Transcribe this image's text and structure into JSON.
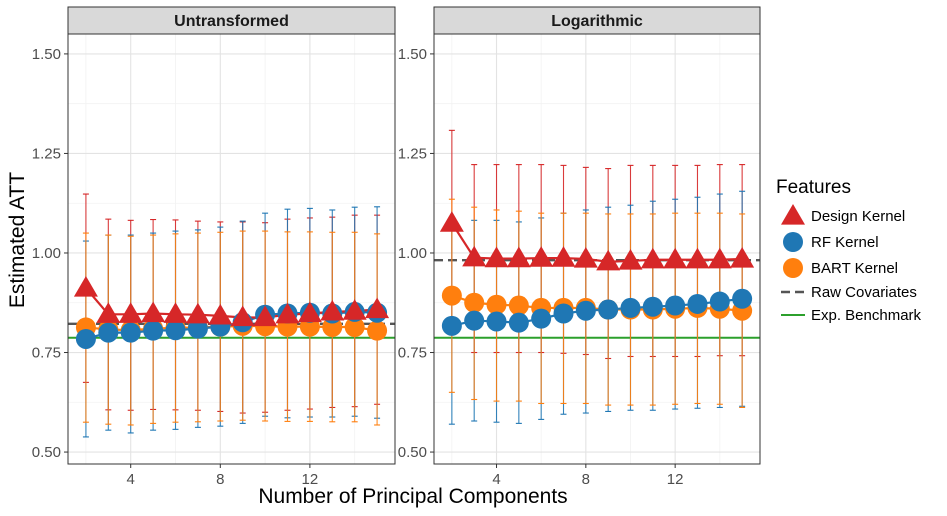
{
  "chart_data": {
    "type": "scatter",
    "ylabel": "Estimated ATT",
    "xlabel": "Number of Principal Components",
    "ylim": [
      0.47,
      1.55
    ],
    "xlim": [
      1.2,
      15.8
    ],
    "y_ticks": [
      0.5,
      0.75,
      1.0,
      1.25,
      1.5
    ],
    "y_tick_labels": [
      "0.50",
      "0.75",
      "1.00",
      "1.25",
      "1.50"
    ],
    "x_ticks": [
      4,
      8,
      12
    ],
    "x_tick_labels": [
      "4",
      "8",
      "12"
    ],
    "x": [
      2,
      3,
      4,
      5,
      6,
      7,
      8,
      9,
      10,
      11,
      12,
      13,
      14,
      15
    ],
    "legend": {
      "title": "Features",
      "entries": [
        {
          "key": "design",
          "label": "Design Kernel"
        },
        {
          "key": "rf",
          "label": "RF Kernel"
        },
        {
          "key": "bart",
          "label": "BART Kernel"
        },
        {
          "key": "raw",
          "label": "Raw Covariates"
        },
        {
          "key": "bench",
          "label": "Exp. Benchmark"
        }
      ]
    },
    "colors": {
      "design": "#D62728",
      "rf": "#1F77B4",
      "bart": "#FF7F0E",
      "raw": "#555555",
      "bench": "#2CA02C"
    },
    "panels": [
      {
        "title": "Untransformed",
        "raw_covariates": 0.822,
        "benchmark": 0.787,
        "series": [
          {
            "key": "design",
            "values": [
              0.912,
              0.846,
              0.846,
              0.848,
              0.846,
              0.845,
              0.842,
              0.838,
              0.838,
              0.845,
              0.848,
              0.852,
              0.854,
              0.858
            ],
            "upper": [
              1.148,
              1.085,
              1.082,
              1.084,
              1.083,
              1.08,
              1.078,
              1.078,
              1.076,
              1.085,
              1.088,
              1.09,
              1.095,
              1.095
            ],
            "lower": [
              0.675,
              0.606,
              0.605,
              0.607,
              0.606,
              0.605,
              0.602,
              0.598,
              0.6,
              0.605,
              0.608,
              0.612,
              0.614,
              0.62
            ]
          },
          {
            "key": "rf",
            "values": [
              0.784,
              0.8,
              0.8,
              0.805,
              0.806,
              0.81,
              0.815,
              0.826,
              0.845,
              0.848,
              0.85,
              0.848,
              0.852,
              0.85
            ],
            "upper": [
              1.03,
              1.045,
              1.045,
              1.05,
              1.055,
              1.058,
              1.065,
              1.08,
              1.1,
              1.11,
              1.112,
              1.108,
              1.115,
              1.116
            ],
            "lower": [
              0.538,
              0.555,
              0.548,
              0.555,
              0.557,
              0.562,
              0.565,
              0.572,
              0.59,
              0.586,
              0.588,
              0.588,
              0.59,
              0.585
            ]
          },
          {
            "key": "bart",
            "values": [
              0.813,
              0.808,
              0.806,
              0.81,
              0.812,
              0.813,
              0.815,
              0.817,
              0.816,
              0.815,
              0.815,
              0.814,
              0.814,
              0.805
            ],
            "upper": [
              1.05,
              1.045,
              1.042,
              1.045,
              1.048,
              1.05,
              1.052,
              1.055,
              1.055,
              1.053,
              1.053,
              1.052,
              1.052,
              1.048
            ],
            "lower": [
              0.575,
              0.57,
              0.568,
              0.572,
              0.575,
              0.576,
              0.578,
              0.58,
              0.578,
              0.577,
              0.577,
              0.576,
              0.576,
              0.568
            ]
          }
        ]
      },
      {
        "title": "Logarithmic",
        "raw_covariates": 0.982,
        "benchmark": 0.787,
        "series": [
          {
            "key": "design",
            "values": [
              1.075,
              0.988,
              0.986,
              0.986,
              0.987,
              0.987,
              0.985,
              0.978,
              0.98,
              0.983,
              0.983,
              0.983,
              0.983,
              0.985
            ],
            "upper": [
              1.308,
              1.222,
              1.222,
              1.222,
              1.222,
              1.22,
              1.215,
              1.212,
              1.22,
              1.22,
              1.22,
              1.22,
              1.222,
              1.222
            ],
            "lower": [
              0.838,
              0.75,
              0.75,
              0.75,
              0.75,
              0.748,
              0.745,
              0.735,
              0.74,
              0.74,
              0.74,
              0.74,
              0.742,
              0.742
            ]
          },
          {
            "key": "rf",
            "values": [
              0.817,
              0.83,
              0.828,
              0.825,
              0.835,
              0.848,
              0.855,
              0.858,
              0.862,
              0.865,
              0.868,
              0.872,
              0.878,
              0.885
            ],
            "upper": [
              1.065,
              1.082,
              1.082,
              1.078,
              1.088,
              1.1,
              1.108,
              1.115,
              1.12,
              1.13,
              1.135,
              1.14,
              1.148,
              1.155
            ],
            "lower": [
              0.57,
              0.578,
              0.575,
              0.572,
              0.582,
              0.595,
              0.598,
              0.602,
              0.605,
              0.605,
              0.608,
              0.61,
              0.612,
              0.615
            ]
          },
          {
            "key": "bart",
            "values": [
              0.893,
              0.875,
              0.87,
              0.868,
              0.862,
              0.862,
              0.862,
              0.858,
              0.858,
              0.858,
              0.86,
              0.862,
              0.86,
              0.855
            ],
            "upper": [
              1.135,
              1.115,
              1.108,
              1.105,
              1.1,
              1.1,
              1.1,
              1.098,
              1.098,
              1.098,
              1.1,
              1.1,
              1.1,
              1.098
            ],
            "lower": [
              0.65,
              0.632,
              0.628,
              0.628,
              0.622,
              0.622,
              0.622,
              0.618,
              0.618,
              0.618,
              0.62,
              0.622,
              0.62,
              0.612
            ]
          }
        ]
      }
    ]
  }
}
